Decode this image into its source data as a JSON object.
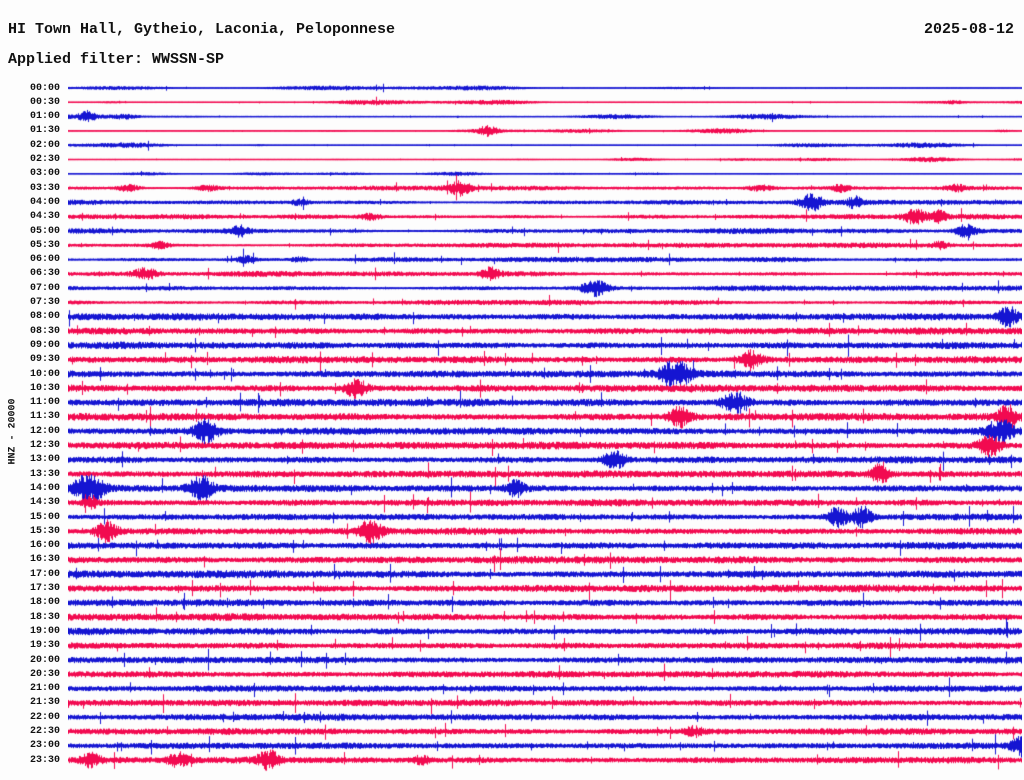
{
  "header": {
    "title": "HI Town Hall, Gytheio, Laconia, Peloponnese",
    "date": "2025-08-12",
    "filter_label": "Applied filter: WWSSN-SP"
  },
  "y_axis_label": "HNZ - 20000",
  "colors": {
    "blue": "#1515d2",
    "red": "#f20a50",
    "background": "#fdfdfd",
    "text": "#111111"
  },
  "chart_data": {
    "type": "line",
    "subtype": "helicorder-seismogram",
    "station": "HI Town Hall, Gytheio, Laconia, Peloponnese",
    "channel_scale": "HNZ - 20000",
    "date": "2025-08-12",
    "filter": "WWSSN-SP",
    "minutes_per_row": 30,
    "row_color_rule": "rows starting on the hour are blue, half-hour rows are red",
    "rows": [
      {
        "t": "00:00",
        "c": "blue",
        "a": 1.7,
        "p": "s",
        "ev": []
      },
      {
        "t": "00:30",
        "c": "red",
        "a": 1.6,
        "p": "s",
        "ev": [
          {
            "x": 0.045,
            "a": 2.5,
            "w": 10
          },
          {
            "x": 0.93,
            "a": 1.8,
            "w": 10
          }
        ]
      },
      {
        "t": "01:00",
        "c": "blue",
        "a": 2.0,
        "p": "s",
        "ev": [
          {
            "x": 0.02,
            "a": 2.2,
            "w": 7
          },
          {
            "x": 0.062,
            "a": 2.5,
            "w": 12
          }
        ]
      },
      {
        "t": "01:30",
        "c": "red",
        "a": 1.6,
        "p": "s",
        "ev": [
          {
            "x": 0.44,
            "a": 4.5,
            "w": 10
          },
          {
            "x": 0.98,
            "a": 4.0,
            "w": 10
          }
        ]
      },
      {
        "t": "02:00",
        "c": "blue",
        "a": 1.5,
        "p": "s",
        "ev": [
          {
            "x": 0.2,
            "a": 1.8,
            "w": 8
          }
        ]
      },
      {
        "t": "02:30",
        "c": "red",
        "a": 1.2,
        "p": "s",
        "ev": []
      },
      {
        "t": "03:00",
        "c": "blue",
        "a": 1.0,
        "p": "s",
        "ev": []
      },
      {
        "t": "03:30",
        "c": "red",
        "a": 2.2,
        "p": "m",
        "ev": [
          {
            "x": 0.065,
            "a": 5,
            "w": 11
          },
          {
            "x": 0.144,
            "a": 5,
            "w": 13
          },
          {
            "x": 0.41,
            "a": 4,
            "w": 11
          },
          {
            "x": 0.725,
            "a": 4.5,
            "w": 13
          },
          {
            "x": 0.81,
            "a": 2.5,
            "w": 9
          },
          {
            "x": 0.93,
            "a": 2.2,
            "w": 10
          }
        ]
      },
      {
        "t": "04:00",
        "c": "blue",
        "a": 2.4,
        "p": "m",
        "ev": [
          {
            "x": 0.243,
            "a": 2.5,
            "w": 9
          },
          {
            "x": 0.778,
            "a": 4.2,
            "w": 11
          },
          {
            "x": 0.825,
            "a": 2.5,
            "w": 7
          }
        ]
      },
      {
        "t": "04:30",
        "c": "red",
        "a": 2.4,
        "p": "m",
        "ev": [
          {
            "x": 0.317,
            "a": 3.5,
            "w": 11
          },
          {
            "x": 0.888,
            "a": 5,
            "w": 12
          },
          {
            "x": 0.912,
            "a": 3.5,
            "w": 7
          }
        ]
      },
      {
        "t": "05:00",
        "c": "blue",
        "a": 2.6,
        "p": "m",
        "ev": [
          {
            "x": 0.18,
            "a": 2.5,
            "w": 9
          },
          {
            "x": 0.94,
            "a": 4.5,
            "w": 11
          }
        ]
      },
      {
        "t": "05:30",
        "c": "red",
        "a": 2.6,
        "p": "m",
        "ev": [
          {
            "x": 0.096,
            "a": 2.8,
            "w": 9
          },
          {
            "x": 0.914,
            "a": 2.2,
            "w": 8
          }
        ]
      },
      {
        "t": "06:00",
        "c": "blue",
        "a": 2.6,
        "p": "m",
        "ev": [
          {
            "x": 0.186,
            "a": 3,
            "w": 9
          },
          {
            "x": 0.243,
            "a": 3,
            "w": 9
          }
        ]
      },
      {
        "t": "06:30",
        "c": "red",
        "a": 2.6,
        "p": "m",
        "ev": [
          {
            "x": 0.081,
            "a": 3.5,
            "w": 11
          },
          {
            "x": 0.442,
            "a": 2.8,
            "w": 9
          }
        ]
      },
      {
        "t": "07:00",
        "c": "blue",
        "a": 2.7,
        "p": "m",
        "ev": [
          {
            "x": 0.552,
            "a": 5,
            "w": 13
          }
        ]
      },
      {
        "t": "07:30",
        "c": "red",
        "a": 2.6,
        "p": "m",
        "ev": []
      },
      {
        "t": "08:00",
        "c": "blue",
        "a": 3.1,
        "p": "d",
        "ev": [
          {
            "x": 0.985,
            "a": 3.8,
            "w": 9
          }
        ]
      },
      {
        "t": "08:30",
        "c": "red",
        "a": 3.0,
        "p": "d",
        "ev": []
      },
      {
        "t": "09:00",
        "c": "blue",
        "a": 3.1,
        "p": "d",
        "ev": []
      },
      {
        "t": "09:30",
        "c": "red",
        "a": 3.1,
        "p": "d",
        "ev": [
          {
            "x": 0.715,
            "a": 3.8,
            "w": 11
          }
        ]
      },
      {
        "t": "10:00",
        "c": "blue",
        "a": 3.3,
        "p": "d",
        "ev": [
          {
            "x": 0.636,
            "a": 4.2,
            "w": 13
          }
        ]
      },
      {
        "t": "10:30",
        "c": "red",
        "a": 3.3,
        "p": "d",
        "ev": [
          {
            "x": 0.301,
            "a": 4.2,
            "w": 11
          }
        ]
      },
      {
        "t": "11:00",
        "c": "blue",
        "a": 3.4,
        "p": "d",
        "ev": [
          {
            "x": 0.699,
            "a": 4.2,
            "w": 13
          }
        ]
      },
      {
        "t": "11:30",
        "c": "red",
        "a": 3.4,
        "p": "d",
        "ev": [
          {
            "x": 0.641,
            "a": 4.2,
            "w": 11
          },
          {
            "x": 0.984,
            "a": 3,
            "w": 9
          }
        ]
      },
      {
        "t": "12:00",
        "c": "blue",
        "a": 3.3,
        "p": "d",
        "ev": [
          {
            "x": 0.144,
            "a": 4.2,
            "w": 11
          },
          {
            "x": 0.977,
            "a": 3.8,
            "w": 12
          }
        ]
      },
      {
        "t": "12:30",
        "c": "red",
        "a": 3.3,
        "p": "d",
        "ev": [
          {
            "x": 0.966,
            "a": 4.5,
            "w": 11
          }
        ]
      },
      {
        "t": "13:00",
        "c": "blue",
        "a": 3.1,
        "p": "d",
        "ev": [
          {
            "x": 0.573,
            "a": 3.5,
            "w": 11
          }
        ]
      },
      {
        "t": "13:30",
        "c": "red",
        "a": 3.1,
        "p": "d",
        "ev": [
          {
            "x": 0.851,
            "a": 4.2,
            "w": 9
          }
        ]
      },
      {
        "t": "14:00",
        "c": "blue",
        "a": 3.1,
        "p": "d",
        "ev": [
          {
            "x": 0.021,
            "a": 5.5,
            "w": 13
          },
          {
            "x": 0.138,
            "a": 4.5,
            "w": 11
          },
          {
            "x": 0.469,
            "a": 3,
            "w": 9
          }
        ]
      },
      {
        "t": "14:30",
        "c": "red",
        "a": 3.0,
        "p": "d",
        "ev": [
          {
            "x": 0.023,
            "a": 2.5,
            "w": 7
          }
        ]
      },
      {
        "t": "15:00",
        "c": "blue",
        "a": 2.8,
        "p": "d",
        "ev": [
          {
            "x": 0.807,
            "a": 4.8,
            "w": 9
          },
          {
            "x": 0.832,
            "a": 4.8,
            "w": 9
          }
        ]
      },
      {
        "t": "15:30",
        "c": "red",
        "a": 3.0,
        "p": "d",
        "ev": [
          {
            "x": 0.039,
            "a": 4.8,
            "w": 11
          },
          {
            "x": 0.317,
            "a": 4.2,
            "w": 11
          }
        ]
      },
      {
        "t": "16:00",
        "c": "blue",
        "a": 3.3,
        "p": "d",
        "ev": []
      },
      {
        "t": "16:30",
        "c": "red",
        "a": 3.3,
        "p": "d",
        "ev": []
      },
      {
        "t": "17:00",
        "c": "blue",
        "a": 3.5,
        "p": "d",
        "ev": []
      },
      {
        "t": "17:30",
        "c": "red",
        "a": 3.3,
        "p": "d",
        "ev": []
      },
      {
        "t": "18:00",
        "c": "blue",
        "a": 3.2,
        "p": "d",
        "ev": []
      },
      {
        "t": "18:30",
        "c": "red",
        "a": 3.2,
        "p": "d",
        "ev": []
      },
      {
        "t": "19:00",
        "c": "blue",
        "a": 3.1,
        "p": "d",
        "ev": []
      },
      {
        "t": "19:30",
        "c": "red",
        "a": 3.0,
        "p": "d",
        "ev": []
      },
      {
        "t": "20:00",
        "c": "blue",
        "a": 2.9,
        "p": "d",
        "ev": []
      },
      {
        "t": "20:30",
        "c": "red",
        "a": 3.0,
        "p": "d",
        "ev": []
      },
      {
        "t": "21:00",
        "c": "blue",
        "a": 2.8,
        "p": "d",
        "ev": []
      },
      {
        "t": "21:30",
        "c": "red",
        "a": 2.8,
        "p": "d",
        "ev": []
      },
      {
        "t": "22:00",
        "c": "blue",
        "a": 2.9,
        "p": "d",
        "ev": []
      },
      {
        "t": "22:30",
        "c": "red",
        "a": 2.8,
        "p": "d",
        "ev": [
          {
            "x": 0.655,
            "a": 2,
            "w": 9
          }
        ]
      },
      {
        "t": "23:00",
        "c": "blue",
        "a": 2.7,
        "p": "d",
        "ev": [
          {
            "x": 0.998,
            "a": 3.5,
            "w": 9
          }
        ]
      },
      {
        "t": "23:30",
        "c": "red",
        "a": 2.8,
        "p": "d",
        "ev": [
          {
            "x": 0.023,
            "a": 2.2,
            "w": 9
          },
          {
            "x": 0.115,
            "a": 2.5,
            "w": 11
          },
          {
            "x": 0.21,
            "a": 3,
            "w": 11
          },
          {
            "x": 0.37,
            "a": 2,
            "w": 9
          }
        ]
      }
    ]
  }
}
